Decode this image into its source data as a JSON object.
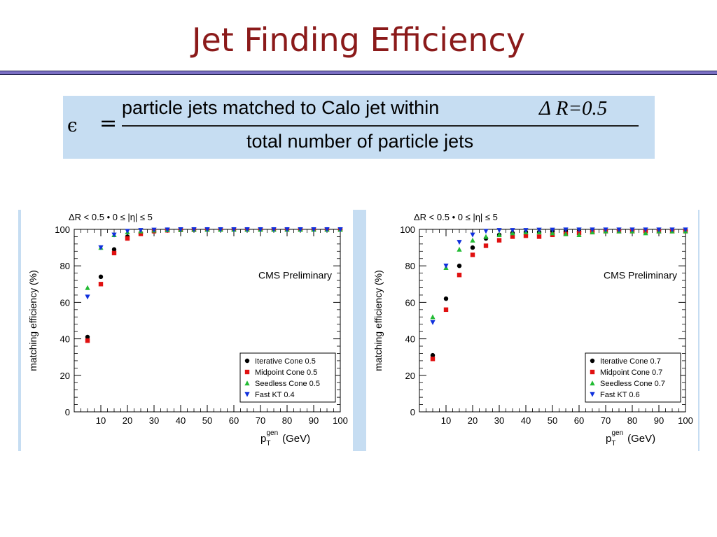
{
  "slide": {
    "title": "Jet Finding Efficiency",
    "title_color": "#8b1a1a",
    "rule_color": "#7b6fc4"
  },
  "formula": {
    "lhs": "ϵ",
    "equals": "=",
    "numerator": "particle jets matched to Calo jet within",
    "numerator_condition": "Δ R=0.5",
    "denominator": "total number of particle jets",
    "background": "#c6ddf2"
  },
  "chart_data": [
    {
      "type": "scatter",
      "title": "ΔR < 0.5 • 0 ≤ |η| ≤ 5",
      "xlabel_main": "p",
      "xlabel_sub": "T",
      "xlabel_sup": "gen",
      "xlabel_unit": "(GeV)",
      "ylabel": "matching efficiency (%)",
      "xlim": [
        0,
        100
      ],
      "ylim": [
        0,
        100
      ],
      "xticks": [
        10,
        20,
        30,
        40,
        50,
        60,
        70,
        80,
        90,
        100
      ],
      "yticks": [
        0,
        20,
        40,
        60,
        80,
        100
      ],
      "annotation": "CMS Preliminary",
      "legend_position": "bottom-right",
      "series": [
        {
          "name": "Iterative Cone 0.5",
          "marker": "circle",
          "color": "#000000",
          "x": [
            5,
            10,
            15,
            20,
            25,
            30,
            35,
            40,
            45,
            50,
            55,
            60,
            65,
            70,
            75,
            80,
            85,
            90,
            95,
            100
          ],
          "y": [
            41,
            74,
            89,
            96,
            98,
            99,
            99.5,
            99.7,
            99.8,
            99.9,
            99.9,
            99.9,
            99.9,
            99.9,
            99.9,
            99.9,
            99.9,
            99.9,
            99.9,
            99.9
          ]
        },
        {
          "name": "Midpoint Cone 0.5",
          "marker": "square",
          "color": "#e01010",
          "x": [
            5,
            10,
            15,
            20,
            25,
            30,
            35,
            40,
            45,
            50,
            55,
            60,
            65,
            70,
            75,
            80,
            85,
            90,
            95,
            100
          ],
          "y": [
            39,
            70,
            87,
            95,
            97.5,
            99,
            99.5,
            99.7,
            99.8,
            99.9,
            99.9,
            99.9,
            99.9,
            99.9,
            99.9,
            99.9,
            99.9,
            99.9,
            99.9,
            99.9
          ]
        },
        {
          "name": "Seedless Cone 0.5",
          "marker": "triangle-up",
          "color": "#22bb33",
          "x": [
            5,
            10,
            15,
            20,
            25,
            30,
            35,
            40,
            45,
            50,
            55,
            60,
            65,
            70,
            75,
            80,
            85,
            90,
            95,
            100
          ],
          "y": [
            68,
            90,
            97,
            98.5,
            99,
            99.5,
            99.7,
            99.8,
            99.9,
            99.9,
            99.9,
            99.9,
            99.9,
            99.9,
            99.9,
            99.9,
            99.9,
            99.9,
            99.9,
            99.9
          ]
        },
        {
          "name": "Fast KT 0.4",
          "marker": "triangle-down",
          "color": "#1030dd",
          "x": [
            5,
            10,
            15,
            20,
            25,
            30,
            35,
            40,
            45,
            50,
            55,
            60,
            65,
            70,
            75,
            80,
            85,
            90,
            95,
            100
          ],
          "y": [
            63,
            90,
            97,
            99,
            99.5,
            99.7,
            99.8,
            99.9,
            99.9,
            99.9,
            99.9,
            99.9,
            99.9,
            99.9,
            99.9,
            99.9,
            99.9,
            99.9,
            99.9,
            99.9
          ]
        }
      ]
    },
    {
      "type": "scatter",
      "title": "ΔR < 0.5 • 0 ≤ |η| ≤ 5",
      "xlabel_main": "p",
      "xlabel_sub": "T",
      "xlabel_sup": "gen",
      "xlabel_unit": "(GeV)",
      "ylabel": "matching efficiency (%)",
      "xlim": [
        0,
        100
      ],
      "ylim": [
        0,
        100
      ],
      "xticks": [
        10,
        20,
        30,
        40,
        50,
        60,
        70,
        80,
        90,
        100
      ],
      "yticks": [
        0,
        20,
        40,
        60,
        80,
        100
      ],
      "annotation": "CMS Preliminary",
      "legend_position": "bottom-right",
      "series": [
        {
          "name": "Iterative Cone 0.7",
          "marker": "circle",
          "color": "#000000",
          "x": [
            5,
            10,
            15,
            20,
            25,
            30,
            35,
            40,
            45,
            50,
            55,
            60,
            65,
            70,
            75,
            80,
            85,
            90,
            95,
            100
          ],
          "y": [
            31,
            62,
            80,
            90,
            95,
            97,
            98,
            98.5,
            98.5,
            99,
            99,
            99,
            99,
            99.5,
            99.5,
            99.5,
            99.5,
            99.5,
            99.5,
            99.5
          ]
        },
        {
          "name": "Midpoint Cone 0.7",
          "marker": "square",
          "color": "#e01010",
          "x": [
            5,
            10,
            15,
            20,
            25,
            30,
            35,
            40,
            45,
            50,
            55,
            60,
            65,
            70,
            75,
            80,
            85,
            90,
            95,
            100
          ],
          "y": [
            29,
            56,
            75,
            86,
            91,
            94,
            96,
            96.5,
            96,
            97,
            97.5,
            98,
            98.5,
            99,
            99,
            99,
            99,
            99,
            99,
            99
          ]
        },
        {
          "name": "Seedless Cone 0.7",
          "marker": "triangle-up",
          "color": "#22bb33",
          "x": [
            5,
            10,
            15,
            20,
            25,
            30,
            35,
            40,
            45,
            50,
            55,
            60,
            65,
            70,
            75,
            80,
            85,
            90,
            95,
            100
          ],
          "y": [
            52,
            79,
            89,
            94,
            96,
            97,
            98,
            98.5,
            98.5,
            98,
            97.5,
            97,
            98.5,
            99,
            99,
            99,
            98,
            99,
            99,
            99
          ]
        },
        {
          "name": "Fast KT 0.6",
          "marker": "triangle-down",
          "color": "#1030dd",
          "x": [
            5,
            10,
            15,
            20,
            25,
            30,
            35,
            40,
            45,
            50,
            55,
            60,
            65,
            70,
            75,
            80,
            85,
            90,
            95,
            100
          ],
          "y": [
            49,
            80,
            93,
            97,
            99,
            99.5,
            99.5,
            99.5,
            99.7,
            99.7,
            99.8,
            99.8,
            99.8,
            99.8,
            99.8,
            99.8,
            99.8,
            99.8,
            99.8,
            99.8
          ]
        }
      ]
    }
  ]
}
